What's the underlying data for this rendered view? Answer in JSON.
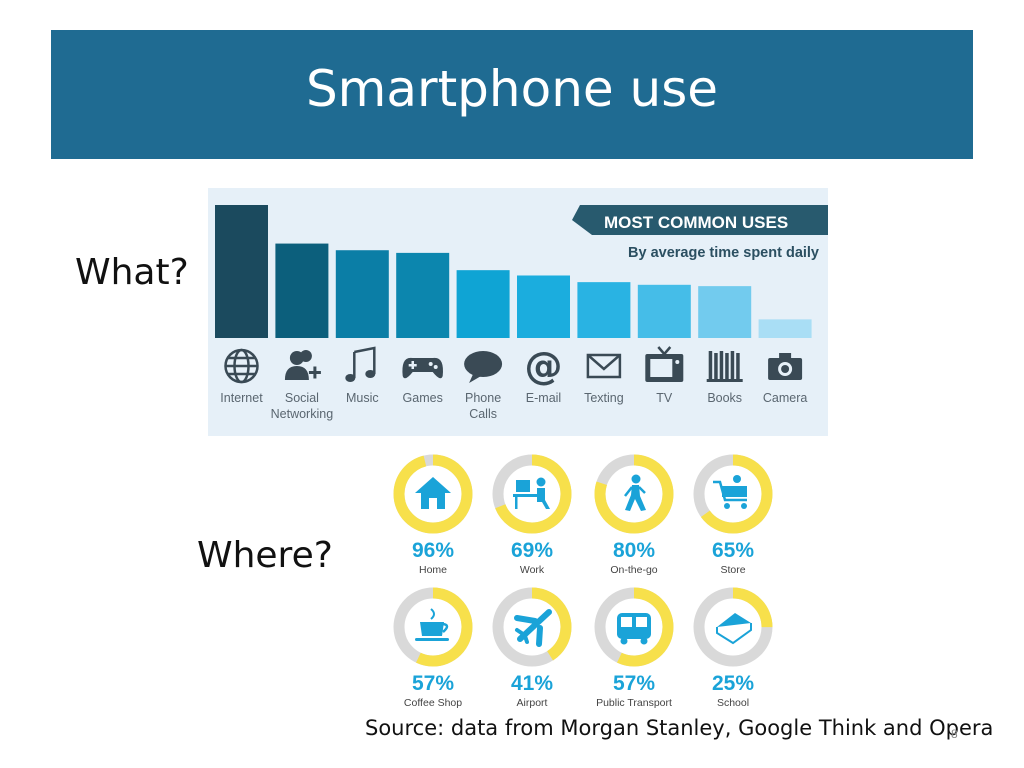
{
  "slide": {
    "title": "Smartphone use",
    "what_label": "What?",
    "where_label": "Where?",
    "source": "Source: data from Morgan Stanley, Google Think and Opera",
    "page_number": "8"
  },
  "colors": {
    "title_bar": "#1f6b92",
    "panel_bg": "#e6f0f8",
    "ring_yellow": "#f7e04b",
    "ring_gray": "#d9d9d9",
    "where_value": "#1aa3d8"
  },
  "chart_data": [
    {
      "type": "bar",
      "title": "MOST COMMON USES",
      "subtitle": "By average time spent daily",
      "categories": [
        "Internet",
        "Social Networking",
        "Music",
        "Games",
        "Phone Calls",
        "E-mail",
        "Texting",
        "TV",
        "Books",
        "Camera"
      ],
      "category_lines": [
        [
          "Internet"
        ],
        [
          "Social",
          "Networking"
        ],
        [
          "Music"
        ],
        [
          "Games"
        ],
        [
          "Phone",
          "Calls"
        ],
        [
          "E-mail"
        ],
        [
          "Texting"
        ],
        [
          "TV"
        ],
        [
          "Books"
        ],
        [
          "Camera"
        ]
      ],
      "icons": [
        "globe-icon",
        "social-networking-icon",
        "music-icon",
        "gamepad-icon",
        "speech-bubble-icon",
        "at-sign-icon",
        "envelope-icon",
        "tv-icon",
        "books-icon",
        "camera-icon"
      ],
      "values": [
        100,
        71,
        66,
        64,
        51,
        47,
        42,
        40,
        39,
        14
      ],
      "value_unit": "relative bar height (no axis shown)",
      "bar_colors": [
        "#1b4a5e",
        "#0c5f7c",
        "#0b7ea6",
        "#0c86ae",
        "#0fa4d4",
        "#1badde",
        "#29b3e3",
        "#45bde8",
        "#72cbee",
        "#a9def5"
      ],
      "ylim": [
        0,
        100
      ],
      "grid": false
    },
    {
      "type": "pie",
      "title": "",
      "categories": [
        "Home",
        "Work",
        "On-the-go",
        "Store",
        "Coffee Shop",
        "Airport",
        "Public Transport",
        "School"
      ],
      "values": [
        96,
        69,
        80,
        65,
        57,
        41,
        57,
        25
      ],
      "value_labels": [
        "96%",
        "69%",
        "80%",
        "65%",
        "57%",
        "41%",
        "57%",
        "25%"
      ],
      "icons": [
        "house-icon",
        "desk-worker-icon",
        "walking-person-icon",
        "shopping-cart-icon",
        "coffee-cup-icon",
        "airplane-icon",
        "bus-icon",
        "book-icon"
      ],
      "style": "donut rings, yellow = share, gray = remainder"
    }
  ]
}
